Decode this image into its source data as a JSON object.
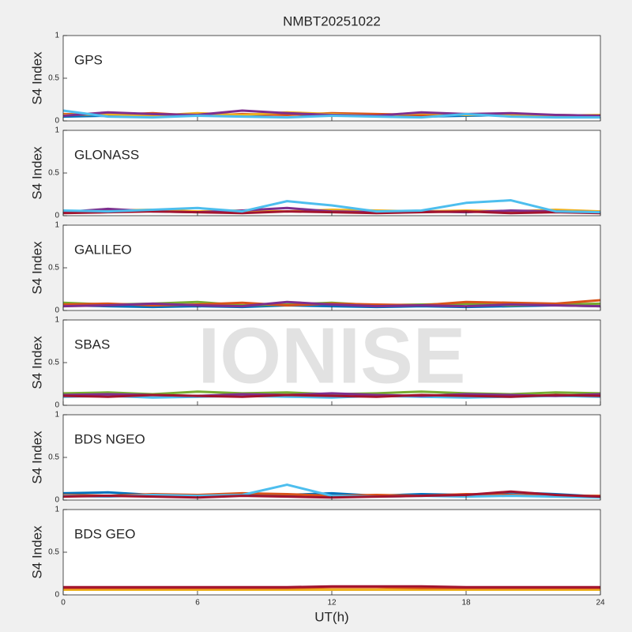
{
  "watermark": "IONISE",
  "chart_data": [
    {
      "type": "line",
      "title": "NMBT20251022",
      "label": "GPS",
      "ylabel": "S4 Index",
      "xlim": [
        0,
        24
      ],
      "xticks": [
        0,
        6,
        12,
        18,
        24
      ],
      "ylim": [
        0,
        1
      ],
      "yticks": [
        0,
        0.5,
        1
      ],
      "x": [
        0,
        2,
        4,
        6,
        8,
        10,
        12,
        14,
        16,
        18,
        20,
        22,
        24
      ],
      "series": [
        {
          "color": "#0072BD",
          "values": [
            0.05,
            0.06,
            0.05,
            0.07,
            0.06,
            0.08,
            0.06,
            0.07,
            0.05,
            0.06,
            0.07,
            0.05,
            0.05
          ]
        },
        {
          "color": "#D95319",
          "values": [
            0.08,
            0.07,
            0.09,
            0.06,
            0.08,
            0.07,
            0.09,
            0.08,
            0.07,
            0.08,
            0.06,
            0.07,
            0.06
          ]
        },
        {
          "color": "#EDB120",
          "values": [
            0.07,
            0.08,
            0.06,
            0.09,
            0.07,
            0.1,
            0.08,
            0.06,
            0.09,
            0.07,
            0.08,
            0.06,
            0.07
          ]
        },
        {
          "color": "#7E2F8E",
          "values": [
            0.06,
            0.1,
            0.08,
            0.07,
            0.12,
            0.09,
            0.07,
            0.06,
            0.1,
            0.08,
            0.09,
            0.07,
            0.06
          ]
        },
        {
          "color": "#4DBEEE",
          "values": [
            0.12,
            0.05,
            0.04,
            0.06,
            0.05,
            0.04,
            0.06,
            0.05,
            0.04,
            0.08,
            0.05,
            0.04,
            0.04
          ]
        }
      ]
    },
    {
      "type": "line",
      "label": "GLONASS",
      "ylabel": "S4 Index",
      "xlim": [
        0,
        24
      ],
      "xticks": [
        0,
        6,
        12,
        18,
        24
      ],
      "ylim": [
        0,
        1
      ],
      "yticks": [
        0,
        0.5,
        1
      ],
      "x": [
        0,
        2,
        4,
        6,
        8,
        10,
        12,
        14,
        16,
        18,
        20,
        22,
        24
      ],
      "series": [
        {
          "color": "#EDB120",
          "values": [
            0.05,
            0.06,
            0.07,
            0.05,
            0.06,
            0.05,
            0.07,
            0.06,
            0.05,
            0.06,
            0.05,
            0.07,
            0.05
          ]
        },
        {
          "color": "#7E2F8E",
          "values": [
            0.04,
            0.08,
            0.05,
            0.04,
            0.06,
            0.09,
            0.05,
            0.04,
            0.05,
            0.04,
            0.06,
            0.05,
            0.04
          ]
        },
        {
          "color": "#A2142F",
          "values": [
            0.03,
            0.04,
            0.05,
            0.04,
            0.03,
            0.05,
            0.04,
            0.03,
            0.04,
            0.05,
            0.03,
            0.04,
            0.03
          ]
        },
        {
          "color": "#4DBEEE",
          "values": [
            0.06,
            0.05,
            0.07,
            0.09,
            0.05,
            0.17,
            0.12,
            0.05,
            0.06,
            0.15,
            0.18,
            0.05,
            0.04
          ]
        }
      ]
    },
    {
      "type": "line",
      "label": "GALILEO",
      "ylabel": "S4 Index",
      "xlim": [
        0,
        24
      ],
      "xticks": [
        0,
        6,
        12,
        18,
        24
      ],
      "ylim": [
        0,
        1
      ],
      "yticks": [
        0,
        0.5,
        1
      ],
      "x": [
        0,
        2,
        4,
        6,
        8,
        10,
        12,
        14,
        16,
        18,
        20,
        22,
        24
      ],
      "series": [
        {
          "color": "#0072BD",
          "values": [
            0.06,
            0.05,
            0.04,
            0.05,
            0.04,
            0.06,
            0.05,
            0.04,
            0.05,
            0.04,
            0.05,
            0.06,
            0.05
          ]
        },
        {
          "color": "#77AC30",
          "values": [
            0.09,
            0.07,
            0.08,
            0.1,
            0.06,
            0.07,
            0.09,
            0.06,
            0.07,
            0.08,
            0.06,
            0.07,
            0.08
          ]
        },
        {
          "color": "#D95319",
          "values": [
            0.07,
            0.08,
            0.06,
            0.07,
            0.09,
            0.06,
            0.08,
            0.07,
            0.06,
            0.1,
            0.09,
            0.08,
            0.12
          ]
        },
        {
          "color": "#7E2F8E",
          "values": [
            0.05,
            0.06,
            0.08,
            0.06,
            0.05,
            0.1,
            0.07,
            0.05,
            0.06,
            0.05,
            0.07,
            0.06,
            0.05
          ]
        }
      ]
    },
    {
      "type": "line",
      "label": "SBAS",
      "ylabel": "S4 Index",
      "xlim": [
        0,
        24
      ],
      "xticks": [
        0,
        6,
        12,
        18,
        24
      ],
      "ylim": [
        0,
        1
      ],
      "yticks": [
        0,
        0.5,
        1
      ],
      "x": [
        0,
        2,
        4,
        6,
        8,
        10,
        12,
        14,
        16,
        18,
        20,
        22,
        24
      ],
      "series": [
        {
          "color": "#77AC30",
          "values": [
            0.14,
            0.15,
            0.13,
            0.16,
            0.14,
            0.15,
            0.13,
            0.14,
            0.16,
            0.14,
            0.13,
            0.15,
            0.14
          ]
        },
        {
          "color": "#4DBEEE",
          "values": [
            0.1,
            0.11,
            0.09,
            0.1,
            0.11,
            0.1,
            0.09,
            0.11,
            0.1,
            0.09,
            0.1,
            0.11,
            0.1
          ]
        },
        {
          "color": "#7E2F8E",
          "values": [
            0.12,
            0.13,
            0.12,
            0.11,
            0.13,
            0.12,
            0.14,
            0.12,
            0.11,
            0.13,
            0.12,
            0.11,
            0.13
          ]
        },
        {
          "color": "#A2142F",
          "values": [
            0.11,
            0.1,
            0.12,
            0.11,
            0.1,
            0.12,
            0.11,
            0.1,
            0.12,
            0.11,
            0.1,
            0.12,
            0.11
          ]
        }
      ]
    },
    {
      "type": "line",
      "label": "BDS NGEO",
      "ylabel": "S4 Index",
      "xlim": [
        0,
        24
      ],
      "xticks": [
        0,
        6,
        12,
        18,
        24
      ],
      "ylim": [
        0,
        1
      ],
      "yticks": [
        0,
        0.5,
        1
      ],
      "x": [
        0,
        2,
        4,
        6,
        8,
        10,
        12,
        14,
        16,
        18,
        20,
        22,
        24
      ],
      "series": [
        {
          "color": "#0072BD",
          "values": [
            0.08,
            0.09,
            0.06,
            0.05,
            0.07,
            0.06,
            0.08,
            0.05,
            0.07,
            0.06,
            0.09,
            0.07,
            0.04
          ]
        },
        {
          "color": "#D95319",
          "values": [
            0.06,
            0.05,
            0.07,
            0.06,
            0.08,
            0.07,
            0.05,
            0.06,
            0.05,
            0.07,
            0.06,
            0.05,
            0.05
          ]
        },
        {
          "color": "#4DBEEE",
          "values": [
            0.05,
            0.04,
            0.06,
            0.05,
            0.06,
            0.18,
            0.05,
            0.04,
            0.05,
            0.04,
            0.05,
            0.04,
            0.03
          ]
        },
        {
          "color": "#A2142F",
          "values": [
            0.04,
            0.05,
            0.04,
            0.03,
            0.05,
            0.04,
            0.03,
            0.04,
            0.05,
            0.06,
            0.1,
            0.06,
            0.04
          ]
        }
      ]
    },
    {
      "type": "line",
      "label": "BDS GEO",
      "ylabel": "S4 Index",
      "xlabel": "UT(h)",
      "xlim": [
        0,
        24
      ],
      "xticks": [
        0,
        6,
        12,
        18,
        24
      ],
      "ylim": [
        0,
        1
      ],
      "yticks": [
        0,
        0.5,
        1
      ],
      "x": [
        0,
        2,
        4,
        6,
        8,
        10,
        12,
        14,
        16,
        18,
        20,
        22,
        24
      ],
      "series": [
        {
          "color": "#EDB120",
          "values": [
            0.06,
            0.06,
            0.06,
            0.06,
            0.06,
            0.06,
            0.06,
            0.06,
            0.06,
            0.06,
            0.06,
            0.06,
            0.06
          ]
        },
        {
          "color": "#D95319",
          "values": [
            0.08,
            0.08,
            0.08,
            0.08,
            0.08,
            0.08,
            0.09,
            0.09,
            0.08,
            0.08,
            0.08,
            0.08,
            0.08
          ]
        },
        {
          "color": "#A2142F",
          "values": [
            0.09,
            0.09,
            0.09,
            0.09,
            0.09,
            0.09,
            0.1,
            0.1,
            0.1,
            0.09,
            0.09,
            0.09,
            0.09
          ]
        }
      ]
    }
  ]
}
